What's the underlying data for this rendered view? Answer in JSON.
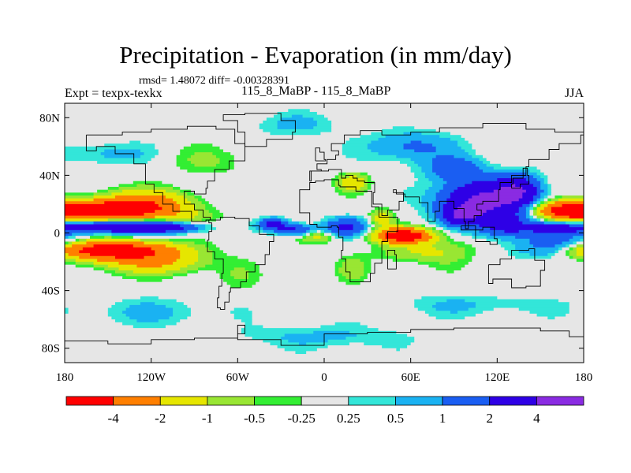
{
  "title": "Precipitation - Evaporation (in mm/day)",
  "stats_line": "rmsd= 1.48072 diff= -0.00328391",
  "expt_label": "Expt = texpx-texkx",
  "subtitle": "115_8_MaBP - 115_8_MaBP",
  "season": "JJA",
  "chart_data": {
    "type": "heatmap",
    "variable": "P - E difference",
    "units": "mm/day",
    "x_axis": {
      "range": [
        -180,
        180
      ],
      "ticks": [
        {
          "value": -180,
          "label": "180"
        },
        {
          "value": -120,
          "label": "120W"
        },
        {
          "value": -60,
          "label": "60W"
        },
        {
          "value": 0,
          "label": "0"
        },
        {
          "value": 60,
          "label": "60E"
        },
        {
          "value": 120,
          "label": "120E"
        },
        {
          "value": 180,
          "label": "180"
        }
      ]
    },
    "y_axis": {
      "range": [
        -90,
        90
      ],
      "ticks": [
        {
          "value": 80,
          "label": "80N"
        },
        {
          "value": 40,
          "label": "40N"
        },
        {
          "value": 0,
          "label": "0"
        },
        {
          "value": -40,
          "label": "40S"
        },
        {
          "value": -80,
          "label": "80S"
        }
      ]
    },
    "levels": [
      "-4",
      "-2",
      "-1",
      "-0.5",
      "-0.25",
      "0.25",
      "0.5",
      "1",
      "2",
      "4"
    ],
    "colors": [
      "#ff0000",
      "#ff7f00",
      "#e6e600",
      "#99e633",
      "#33ee33",
      "#e6e6e6",
      "#33e6d9",
      "#1ab2f2",
      "#1a5ef2",
      "#2e00e6",
      "#8a2be2"
    ],
    "features": [
      {
        "lon": -150,
        "lat": 16,
        "level_index": 0,
        "desc": "strong negative band N Pacific"
      },
      {
        "lon": -150,
        "lat": -12,
        "level_index": 0,
        "desc": "strong negative band S Pacific"
      },
      {
        "lon": -145,
        "lat": 4,
        "level_index": 10,
        "desc": "positive ITCZ band Pacific"
      },
      {
        "lon": 55,
        "lat": -2,
        "level_index": 0,
        "desc": "strong negative Indian Ocean"
      },
      {
        "lon": 110,
        "lat": 22,
        "level_index": 10,
        "desc": "strong positive S/E Asia"
      },
      {
        "lon": 170,
        "lat": 15,
        "level_index": 0,
        "desc": "negative W Pacific"
      }
    ]
  }
}
